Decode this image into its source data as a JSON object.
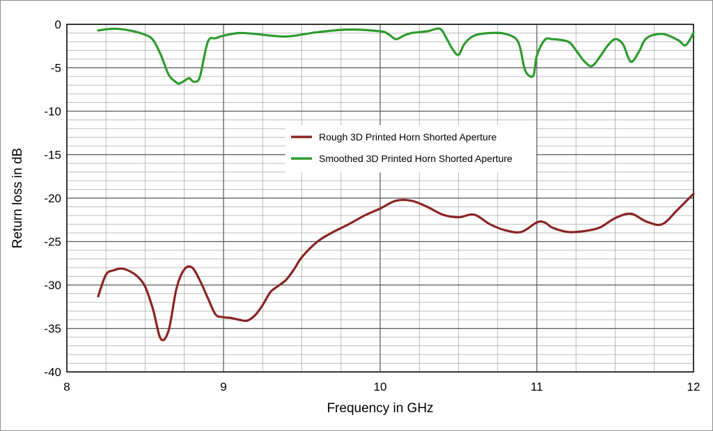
{
  "chart_data": {
    "type": "line",
    "xlabel": "Frequency in GHz",
    "ylabel": "Return loss in dB",
    "xlim": [
      8,
      12
    ],
    "ylim": [
      -40,
      0
    ],
    "x_ticks": [
      8,
      9,
      10,
      11,
      12
    ],
    "x_tick_labels": [
      "8",
      "9",
      "10",
      "11",
      "12"
    ],
    "y_ticks": [
      0,
      -5,
      -10,
      -15,
      -20,
      -25,
      -30,
      -35,
      -40
    ],
    "y_tick_labels": [
      "0",
      "-5",
      "-10",
      "-15",
      "-20",
      "-25",
      "-30",
      "-35",
      "-40"
    ],
    "grid": true,
    "legend_position": "center",
    "series": [
      {
        "name": "Rough 3D Printed Horn Shorted Aperture",
        "color": "#8b2323",
        "x": [
          8.2,
          8.25,
          8.3,
          8.35,
          8.4,
          8.45,
          8.5,
          8.55,
          8.6,
          8.65,
          8.7,
          8.75,
          8.8,
          8.85,
          8.9,
          8.95,
          9.0,
          9.05,
          9.1,
          9.15,
          9.2,
          9.25,
          9.3,
          9.35,
          9.4,
          9.45,
          9.5,
          9.6,
          9.7,
          9.8,
          9.9,
          10.0,
          10.1,
          10.2,
          10.3,
          10.4,
          10.5,
          10.6,
          10.7,
          10.8,
          10.9,
          11.0,
          11.05,
          11.1,
          11.2,
          11.3,
          11.4,
          11.5,
          11.6,
          11.7,
          11.8,
          11.9,
          12.0
        ],
        "y": [
          -31.3,
          -28.8,
          -28.3,
          -28.1,
          -28.4,
          -29.0,
          -30.2,
          -32.8,
          -36.2,
          -35.2,
          -30.4,
          -28.2,
          -28.0,
          -29.5,
          -31.5,
          -33.4,
          -33.7,
          -33.8,
          -34.0,
          -34.1,
          -33.5,
          -32.3,
          -30.8,
          -30.1,
          -29.4,
          -28.2,
          -26.8,
          -25.0,
          -23.9,
          -23.0,
          -22.0,
          -21.2,
          -20.3,
          -20.3,
          -21.0,
          -21.9,
          -22.2,
          -21.9,
          -23.0,
          -23.7,
          -23.9,
          -22.8,
          -22.8,
          -23.4,
          -23.9,
          -23.8,
          -23.4,
          -22.3,
          -21.8,
          -22.7,
          -23.0,
          -21.3,
          -19.5
        ]
      },
      {
        "name": "Smoothed 3D Printed Horn Shorted Aperture",
        "color": "#2e9b2e",
        "x": [
          8.2,
          8.3,
          8.4,
          8.5,
          8.55,
          8.6,
          8.65,
          8.7,
          8.72,
          8.75,
          8.78,
          8.8,
          8.82,
          8.85,
          8.9,
          8.95,
          9.0,
          9.1,
          9.2,
          9.4,
          9.6,
          9.8,
          10.0,
          10.05,
          10.1,
          10.15,
          10.2,
          10.3,
          10.38,
          10.42,
          10.46,
          10.5,
          10.54,
          10.6,
          10.7,
          10.8,
          10.88,
          10.92,
          10.95,
          10.98,
          11.0,
          11.05,
          11.1,
          11.2,
          11.25,
          11.3,
          11.35,
          11.4,
          11.45,
          11.5,
          11.55,
          11.6,
          11.65,
          11.7,
          11.8,
          11.9,
          11.95,
          12.0
        ],
        "y": [
          -0.7,
          -0.5,
          -0.7,
          -1.2,
          -1.8,
          -3.5,
          -5.8,
          -6.7,
          -6.8,
          -6.5,
          -6.2,
          -6.5,
          -6.6,
          -6.0,
          -2.0,
          -1.6,
          -1.3,
          -1.0,
          -1.1,
          -1.4,
          -0.9,
          -0.6,
          -0.8,
          -1.1,
          -1.7,
          -1.3,
          -1.0,
          -0.8,
          -0.5,
          -1.5,
          -2.8,
          -3.5,
          -2.2,
          -1.3,
          -1.0,
          -1.1,
          -2.0,
          -5.0,
          -5.9,
          -5.8,
          -3.6,
          -1.8,
          -1.7,
          -2.0,
          -3.0,
          -4.2,
          -4.8,
          -3.8,
          -2.5,
          -1.7,
          -2.3,
          -4.3,
          -3.2,
          -1.6,
          -1.1,
          -1.8,
          -2.4,
          -1.0
        ]
      }
    ]
  }
}
